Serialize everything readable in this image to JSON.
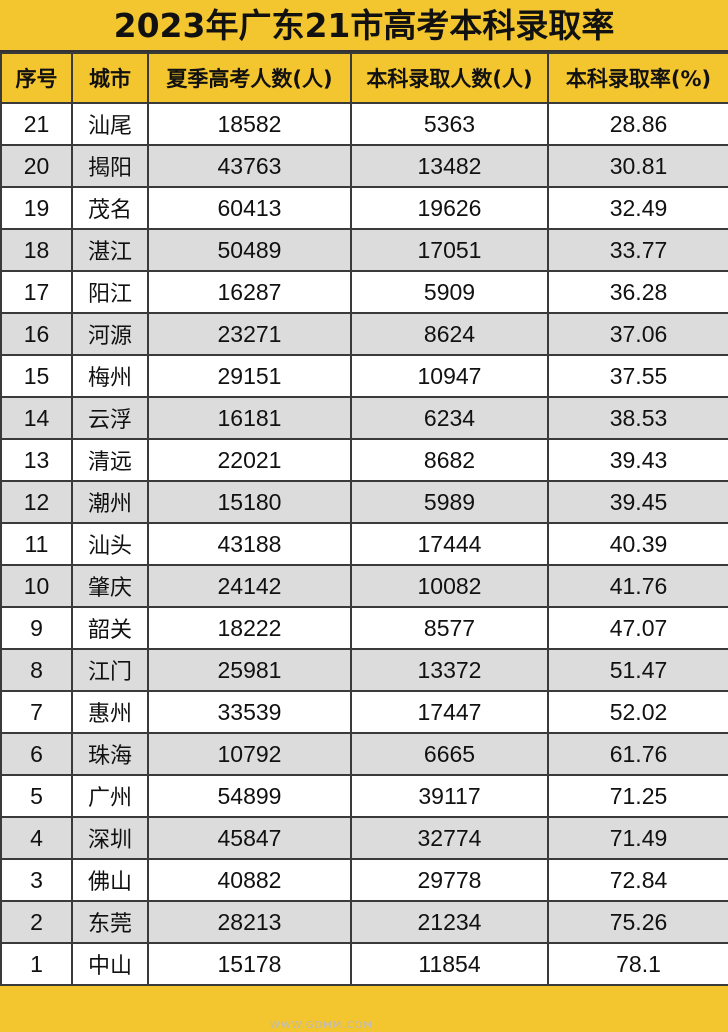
{
  "title": "2023年广东21市高考本科录取率",
  "headers": [
    "序号",
    "城市",
    "夏季高考人数(人)",
    "本科录取人数(人)",
    "本科录取率(%)"
  ],
  "rows": [
    [
      "21",
      "汕尾",
      "18582",
      "5363",
      "28.86"
    ],
    [
      "20",
      "揭阳",
      "43763",
      "13482",
      "30.81"
    ],
    [
      "19",
      "茂名",
      "60413",
      "19626",
      "32.49"
    ],
    [
      "18",
      "湛江",
      "50489",
      "17051",
      "33.77"
    ],
    [
      "17",
      "阳江",
      "16287",
      "5909",
      "36.28"
    ],
    [
      "16",
      "河源",
      "23271",
      "8624",
      "37.06"
    ],
    [
      "15",
      "梅州",
      "29151",
      "10947",
      "37.55"
    ],
    [
      "14",
      "云浮",
      "16181",
      "6234",
      "38.53"
    ],
    [
      "13",
      "清远",
      "22021",
      "8682",
      "39.43"
    ],
    [
      "12",
      "潮州",
      "15180",
      "5989",
      "39.45"
    ],
    [
      "11",
      "汕头",
      "43188",
      "17444",
      "40.39"
    ],
    [
      "10",
      "肇庆",
      "24142",
      "10082",
      "41.76"
    ],
    [
      "9",
      "韶关",
      "18222",
      "8577",
      "47.07"
    ],
    [
      "8",
      "江门",
      "25981",
      "13372",
      "51.47"
    ],
    [
      "7",
      "惠州",
      "33539",
      "17447",
      "52.02"
    ],
    [
      "6",
      "珠海",
      "10792",
      "6665",
      "61.76"
    ],
    [
      "5",
      "广州",
      "54899",
      "39117",
      "71.25"
    ],
    [
      "4",
      "深圳",
      "45847",
      "32774",
      "71.49"
    ],
    [
      "3",
      "佛山",
      "40882",
      "29778",
      "72.84"
    ],
    [
      "2",
      "东莞",
      "28213",
      "21234",
      "75.26"
    ],
    [
      "1",
      "中山",
      "15178",
      "11854",
      "78.1"
    ]
  ],
  "watermark": "WWW.GDMM.COM",
  "colors": {
    "header_bg": "#f3c52f",
    "row_alt": "#dcdcdc",
    "row": "#ffffff"
  }
}
